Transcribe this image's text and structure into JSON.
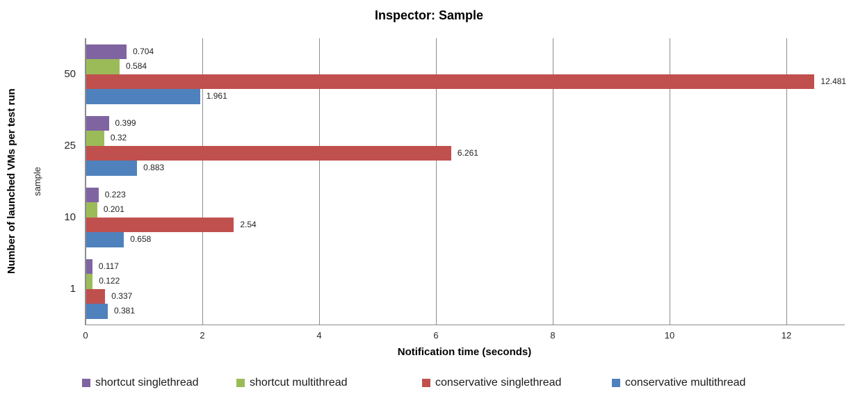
{
  "title": "Inspector: Sample",
  "chart_data": {
    "type": "bar",
    "orientation": "horizontal",
    "title": "Inspector: Sample",
    "xlabel": "Notification time (seconds)",
    "ylabel": "Number of launched VMs per test run",
    "ylabel_secondary": "sample",
    "categories": [
      "50",
      "25",
      "10",
      "1"
    ],
    "series": [
      {
        "name": "shortcut singlethread",
        "color": "#8064A2",
        "values": [
          0.704,
          0.399,
          0.223,
          0.117
        ]
      },
      {
        "name": "shortcut multithread",
        "color": "#9BBB59",
        "values": [
          0.584,
          0.32,
          0.201,
          0.122
        ]
      },
      {
        "name": "conservative singlethread",
        "color": "#C0504D",
        "values": [
          12.481,
          6.261,
          2.54,
          0.337
        ]
      },
      {
        "name": "conservative multithread",
        "color": "#4F81BD",
        "values": [
          1.961,
          0.883,
          0.658,
          0.381
        ]
      }
    ],
    "xlim": [
      0,
      13
    ],
    "xticks": [
      0,
      2,
      4,
      6,
      8,
      10,
      12
    ],
    "grid": "vertical",
    "gridline_color": "#8c8c8c",
    "axis_color": "#8c8c8c",
    "value_labels": true,
    "legend_position": "bottom"
  }
}
